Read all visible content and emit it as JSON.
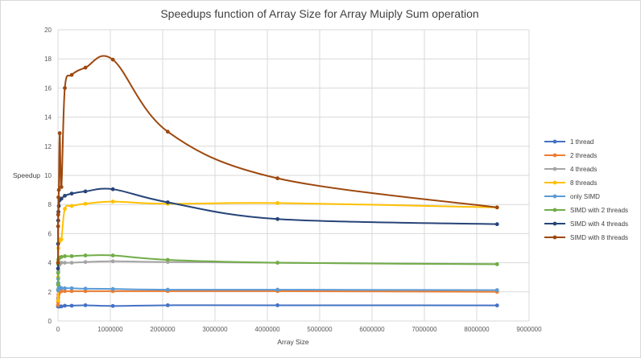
{
  "chart_data": {
    "type": "line",
    "title": "Speedups function of Array Size for Array Muiply Sum operation",
    "xlabel": "Array Size",
    "ylabel": "Speedup",
    "xlim": [
      0,
      9000000
    ],
    "ylim": [
      0,
      20
    ],
    "xticks": [
      0,
      1000000,
      2000000,
      3000000,
      4000000,
      5000000,
      6000000,
      7000000,
      8000000,
      9000000
    ],
    "yticks": [
      0,
      2,
      4,
      6,
      8,
      10,
      12,
      14,
      16,
      18,
      20
    ],
    "grid": "horizontal and vertical",
    "legend_position": "right",
    "smooth": true,
    "x": [
      1024,
      2048,
      4096,
      8192,
      16384,
      32768,
      65536,
      131072,
      262144,
      524288,
      1048576,
      2097152,
      4194304,
      8388608
    ],
    "series": [
      {
        "name": "1 thread",
        "color": "#4472C4",
        "values": [
          1.0,
          1.0,
          1.0,
          1.0,
          1.0,
          1.0,
          1.0,
          1.05,
          1.05,
          1.08,
          1.03,
          1.08,
          1.08,
          1.07
        ]
      },
      {
        "name": "2 threads",
        "color": "#ED7D31",
        "values": [
          1.1,
          1.3,
          1.6,
          1.8,
          1.9,
          2.0,
          2.05,
          2.05,
          2.05,
          2.05,
          2.05,
          2.05,
          2.05,
          2.0
        ]
      },
      {
        "name": "4 threads",
        "color": "#A5A5A5",
        "values": [
          1.5,
          2.2,
          3.0,
          3.4,
          3.8,
          3.9,
          4.0,
          4.0,
          4.0,
          4.05,
          4.1,
          4.05,
          4.0,
          3.9
        ]
      },
      {
        "name": "8 threads",
        "color": "#FFC000",
        "values": [
          1.4,
          3.0,
          4.2,
          5.0,
          5.4,
          5.6,
          5.6,
          7.7,
          7.9,
          8.05,
          8.2,
          8.05,
          8.1,
          7.8
        ]
      },
      {
        "name": "only SIMD",
        "color": "#5B9BD5",
        "values": [
          2.1,
          2.6,
          2.9,
          2.6,
          2.4,
          2.3,
          2.25,
          2.25,
          2.25,
          2.22,
          2.2,
          2.15,
          2.15,
          2.12
        ]
      },
      {
        "name": "SIMD with 2 threads",
        "color": "#70AD47",
        "values": [
          2.5,
          3.3,
          3.9,
          4.2,
          4.3,
          4.35,
          4.4,
          4.45,
          4.45,
          4.5,
          4.5,
          4.2,
          4.0,
          3.9
        ]
      },
      {
        "name": "SIMD with 4 threads",
        "color": "#264478",
        "values": [
          3.6,
          5.3,
          6.9,
          7.5,
          7.9,
          8.3,
          8.4,
          8.6,
          8.75,
          8.9,
          9.05,
          8.15,
          7.0,
          6.65
        ]
      },
      {
        "name": "SIMD with 8 threads",
        "color": "#9E480E",
        "values": [
          4.0,
          6.5,
          7.3,
          8.5,
          9.0,
          12.9,
          9.2,
          16.0,
          16.9,
          17.4,
          17.95,
          13.0,
          9.8,
          7.8
        ]
      }
    ]
  }
}
